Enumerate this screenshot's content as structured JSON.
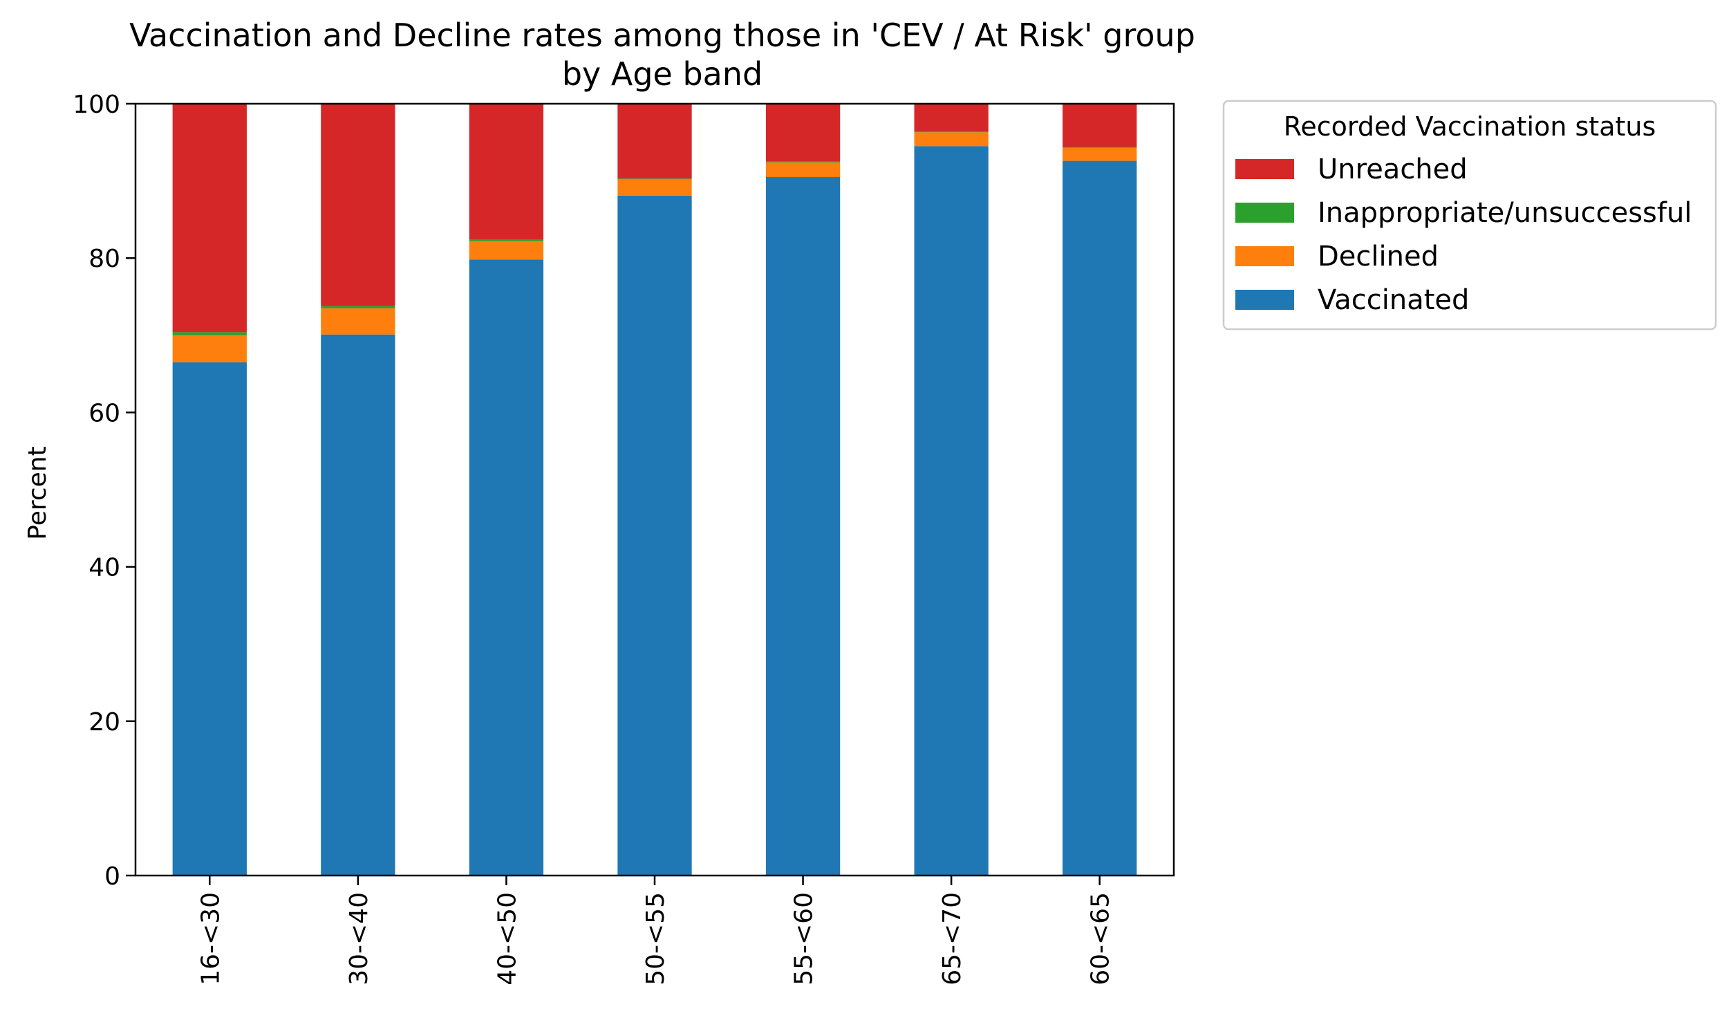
{
  "chart_data": {
    "type": "bar",
    "stacked": true,
    "title": "Vaccination and Decline rates among those in 'CEV / At Risk' group",
    "subtitle": "by Age band",
    "xlabel": "",
    "ylabel": "Percent",
    "ylim": [
      0,
      100
    ],
    "yticks": [
      0,
      20,
      40,
      60,
      80,
      100
    ],
    "grid": false,
    "categories": [
      "16-<30",
      "30-<40",
      "40-<50",
      "50-<55",
      "55-<60",
      "65-<70",
      "60-<65"
    ],
    "series": [
      {
        "name": "Vaccinated",
        "color": "#1f77b4",
        "values": [
          66.5,
          70.1,
          79.8,
          88.1,
          90.5,
          94.5,
          92.6
        ]
      },
      {
        "name": "Declined",
        "color": "#ff7f0e",
        "values": [
          3.5,
          3.4,
          2.4,
          2.1,
          1.9,
          1.8,
          1.7
        ]
      },
      {
        "name": "Inappropriate/unsuccessful",
        "color": "#2ca02c",
        "values": [
          0.4,
          0.3,
          0.2,
          0.1,
          0.1,
          0.1,
          0.1
        ]
      },
      {
        "name": "Unreached",
        "color": "#d62728",
        "values": [
          29.6,
          26.2,
          17.6,
          9.7,
          7.5,
          3.6,
          5.6
        ]
      }
    ],
    "legend": {
      "title": "Recorded Vaccination status",
      "placement": "outside-right-top",
      "order": [
        "Unreached",
        "Inappropriate/unsuccessful",
        "Declined",
        "Vaccinated"
      ]
    }
  }
}
